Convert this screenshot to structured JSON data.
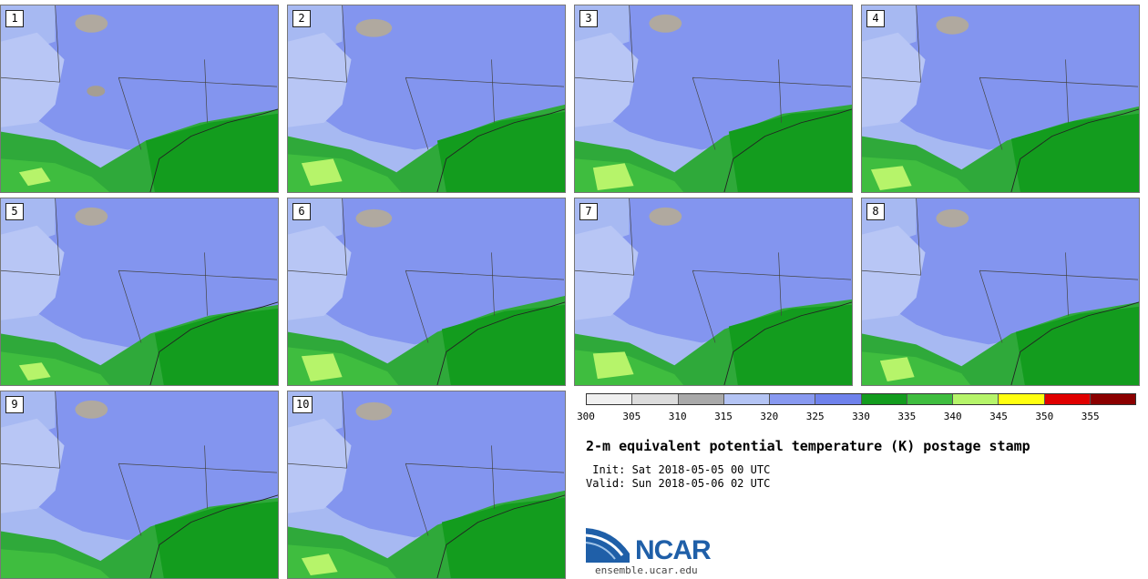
{
  "panels": [
    "1",
    "2",
    "3",
    "4",
    "5",
    "6",
    "7",
    "8",
    "9",
    "10"
  ],
  "colorbar": {
    "colors": [
      "#f0f0f0",
      "#dcdcdc",
      "#a9a9a9",
      "#b4c4f4",
      "#8899f0",
      "#6f82ec",
      "#139c1e",
      "#3fbd3f",
      "#b6f46a",
      "#ffff10",
      "#e00000",
      "#8b0000"
    ],
    "ticks": [
      "300",
      "305",
      "310",
      "315",
      "320",
      "325",
      "330",
      "335",
      "340",
      "345",
      "350",
      "355"
    ]
  },
  "title": "2-m equivalent potential temperature (K) postage stamp",
  "init": " Init: Sat 2018-05-05 00 UTC",
  "valid": "Valid: Sun 2018-05-06 02 UTC",
  "logo": {
    "text": "NCAR",
    "url_text": "ensemble.ucar.edu"
  }
}
